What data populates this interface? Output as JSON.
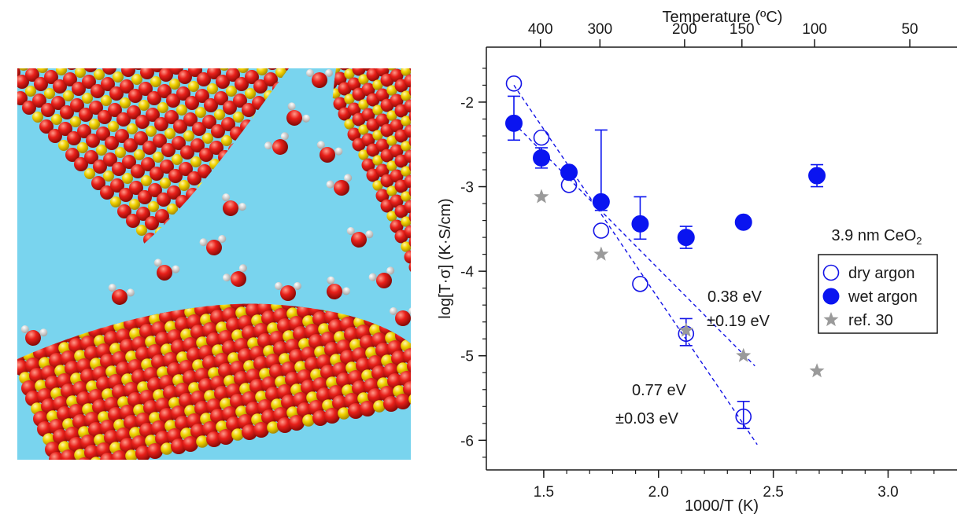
{
  "illustration": {
    "description_icon": "ceo2-nanoparticles-with-water-molecules"
  },
  "chart_data": {
    "type": "scatter",
    "xlabel": "1000/T (K)",
    "ylabel": "log[T·σ] (K·S/cm)",
    "top_axis_label": "Temperature (ºC)",
    "xlim": [
      1.25,
      3.3
    ],
    "ylim": [
      -6.35,
      -1.35
    ],
    "x_ticks": [
      1.5,
      2.0,
      2.5,
      3.0
    ],
    "x_tick_labels": [
      "1.5",
      "2.0",
      "2.5",
      "3.0"
    ],
    "y_ticks": [
      -6,
      -5,
      -4,
      -3,
      -2
    ],
    "y_tick_labels": [
      "-6",
      "-5",
      "-4",
      "-3",
      "-2"
    ],
    "top_ticks_celsius": [
      400,
      300,
      200,
      150,
      100,
      50
    ],
    "top_tick_labels": [
      "400",
      "300",
      "200",
      "150",
      "100",
      "50"
    ],
    "legend": {
      "placement": "right",
      "title_prefix": "3.9 nm CeO",
      "title_subscript": "2",
      "entries": [
        "dry argon",
        "wet argon",
        "ref. 30"
      ]
    },
    "series": [
      {
        "name": "dry argon",
        "marker": "open-circle",
        "color": "#1414e6",
        "x": [
          1.37,
          1.49,
          1.61,
          1.75,
          1.92,
          2.12,
          2.37
        ],
        "y": [
          -1.78,
          -2.42,
          -2.98,
          -3.52,
          -4.15,
          -4.74,
          -5.72
        ],
        "err_up": [
          0,
          0,
          0,
          0,
          0,
          0.18,
          0.18
        ],
        "err_down": [
          0,
          0,
          0,
          0,
          0,
          0.14,
          0.14
        ]
      },
      {
        "name": "wet argon",
        "marker": "filled-circle",
        "color": "#0a14f0",
        "x": [
          1.37,
          1.49,
          1.61,
          1.75,
          1.92,
          2.12,
          2.37,
          2.69
        ],
        "y": [
          -2.25,
          -2.66,
          -2.83,
          -3.18,
          -3.44,
          -3.6,
          -3.42,
          -2.87
        ],
        "err_up": [
          0.32,
          0.12,
          0,
          0.85,
          0.32,
          0.13,
          0,
          0.13
        ],
        "err_down": [
          0.2,
          0.12,
          0,
          0.1,
          0.18,
          0.13,
          0,
          0.13
        ]
      },
      {
        "name": "ref. 30",
        "marker": "star",
        "color": "#9a9a9a",
        "x": [
          1.49,
          1.75,
          2.12,
          2.37,
          2.69
        ],
        "y": [
          -3.12,
          -3.8,
          -4.7,
          -5.0,
          -5.18
        ]
      }
    ],
    "fits": [
      {
        "x": [
          1.37,
          2.42
        ],
        "y": [
          -2.25,
          -5.12
        ],
        "color": "#1414e6"
      },
      {
        "x": [
          1.37,
          2.43
        ],
        "y": [
          -1.8,
          -6.05
        ],
        "color": "#1414e6"
      }
    ],
    "annotations": [
      {
        "line1": "0.38 eV",
        "line2": "±0.19 eV"
      },
      {
        "line1": "0.77 eV",
        "line2": "±0.03 eV"
      }
    ]
  }
}
